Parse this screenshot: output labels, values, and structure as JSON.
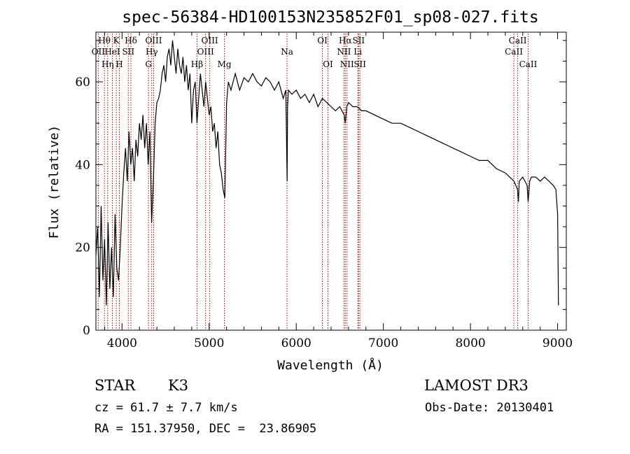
{
  "chart_data": {
    "type": "line",
    "title": "spec-56384-HD100153N235852F01_sp08-027.fits",
    "xlabel": "Wavelength (Å)",
    "ylabel": "Flux (relative)",
    "xlim": [
      3700,
      9100
    ],
    "ylim": [
      0,
      72
    ],
    "xticks": [
      4000,
      5000,
      6000,
      7000,
      8000,
      9000
    ],
    "xtick_labels": [
      "4000",
      "5000",
      "6000",
      "7000",
      "8000",
      "9000"
    ],
    "yticks": [
      0,
      20,
      40,
      60
    ],
    "ytick_labels": [
      "0",
      "20",
      "40",
      "60"
    ],
    "grid": false,
    "series": [
      {
        "color": "#000000",
        "x": [
          3700,
          3720,
          3740,
          3760,
          3780,
          3800,
          3820,
          3840,
          3860,
          3880,
          3900,
          3920,
          3940,
          3960,
          3980,
          4000,
          4020,
          4040,
          4060,
          4080,
          4100,
          4120,
          4140,
          4160,
          4180,
          4200,
          4220,
          4240,
          4260,
          4280,
          4300,
          4320,
          4340,
          4360,
          4380,
          4400,
          4420,
          4440,
          4460,
          4480,
          4500,
          4520,
          4540,
          4560,
          4580,
          4600,
          4620,
          4640,
          4660,
          4680,
          4700,
          4720,
          4740,
          4760,
          4780,
          4800,
          4820,
          4840,
          4860,
          4880,
          4900,
          4920,
          4940,
          4960,
          4980,
          5000,
          5020,
          5040,
          5060,
          5080,
          5100,
          5120,
          5140,
          5160,
          5180,
          5200,
          5220,
          5250,
          5300,
          5350,
          5400,
          5450,
          5500,
          5550,
          5600,
          5650,
          5700,
          5750,
          5800,
          5850,
          5880,
          5890,
          5895,
          5900,
          5910,
          5950,
          6000,
          6050,
          6100,
          6150,
          6200,
          6250,
          6300,
          6350,
          6400,
          6450,
          6500,
          6550,
          6563,
          6580,
          6600,
          6650,
          6700,
          6750,
          6800,
          6900,
          7000,
          7100,
          7200,
          7300,
          7400,
          7500,
          7600,
          7700,
          7800,
          7900,
          8000,
          8100,
          8200,
          8300,
          8400,
          8500,
          8540,
          8550,
          8560,
          8600,
          8650,
          8662,
          8680,
          8700,
          8750,
          8800,
          8850,
          8900,
          8950,
          8980,
          9000,
          9010
        ],
        "y": [
          18,
          25,
          8,
          30,
          12,
          22,
          6,
          26,
          10,
          20,
          8,
          28,
          15,
          12,
          20,
          30,
          38,
          44,
          36,
          48,
          40,
          44,
          36,
          46,
          42,
          50,
          46,
          52,
          44,
          50,
          40,
          48,
          26,
          36,
          50,
          55,
          56,
          58,
          62,
          64,
          60,
          66,
          68,
          64,
          70,
          66,
          62,
          68,
          64,
          62,
          66,
          60,
          64,
          58,
          62,
          50,
          58,
          60,
          50,
          56,
          62,
          58,
          54,
          60,
          56,
          52,
          54,
          48,
          50,
          44,
          48,
          40,
          38,
          34,
          32,
          55,
          60,
          58,
          62,
          58,
          61,
          60,
          62,
          60,
          59,
          61,
          60,
          58,
          60,
          56,
          58,
          44,
          36,
          54,
          58,
          57,
          58,
          56,
          57,
          55,
          57,
          54,
          56,
          55,
          54,
          53,
          54,
          52,
          50,
          54,
          55,
          54,
          54,
          53,
          53,
          52,
          51,
          50,
          50,
          49,
          48,
          47,
          46,
          45,
          44,
          43,
          42,
          41,
          41,
          39,
          38,
          36,
          34,
          31,
          36,
          37,
          35,
          31,
          36,
          37,
          37,
          36,
          37,
          36,
          35,
          34,
          28,
          6
        ],
        "values": [
          18,
          25,
          8,
          30,
          12,
          22,
          6,
          26,
          10,
          20,
          8,
          28,
          15,
          12,
          20,
          30,
          38,
          44,
          36,
          48,
          40,
          44,
          36,
          46,
          42,
          50,
          46,
          52,
          44,
          50,
          40,
          48,
          26,
          36,
          50,
          55,
          56,
          58,
          62,
          64,
          60,
          66,
          68,
          64,
          70,
          66,
          62,
          68,
          64,
          62,
          66,
          60,
          64,
          58,
          62,
          50,
          58,
          60,
          50,
          56,
          62,
          58,
          54,
          60,
          56,
          52,
          54,
          48,
          50,
          44,
          48,
          40,
          38,
          34,
          32,
          55,
          60,
          58,
          62,
          58,
          61,
          60,
          62,
          60,
          59,
          61,
          60,
          58,
          60,
          56,
          58,
          44,
          36,
          54,
          58,
          57,
          58,
          56,
          57,
          55,
          57,
          54,
          56,
          55,
          54,
          53,
          54,
          52,
          50,
          54,
          55,
          54,
          54,
          53,
          53,
          52,
          51,
          50,
          50,
          49,
          48,
          47,
          46,
          45,
          44,
          43,
          42,
          41,
          41,
          39,
          38,
          36,
          34,
          31,
          36,
          37,
          35,
          31,
          36,
          37,
          37,
          36,
          37,
          36,
          35,
          34,
          28,
          6
        ]
      }
    ],
    "line_color": "#aa0000",
    "lines": [
      {
        "x": 3727,
        "label": "OII",
        "row": 2
      },
      {
        "x": 3798,
        "label": "Hθ",
        "row": 1
      },
      {
        "x": 3835,
        "label": "Hη",
        "row": 3
      },
      {
        "x": 3889,
        "label": "HeI",
        "row": 2
      },
      {
        "x": 3934,
        "label": "K",
        "row": 1
      },
      {
        "x": 3969,
        "label": "H",
        "row": 3
      },
      {
        "x": 4072,
        "label": "SII",
        "row": 2
      },
      {
        "x": 4102,
        "label": "Hδ",
        "row": 1
      },
      {
        "x": 4304,
        "label": "G",
        "row": 3
      },
      {
        "x": 4341,
        "label": "Hγ",
        "row": 2
      },
      {
        "x": 4363,
        "label": "OIII",
        "row": 1
      },
      {
        "x": 4861,
        "label": "Hβ",
        "row": 3
      },
      {
        "x": 4959,
        "label": "OIII",
        "row": 2
      },
      {
        "x": 5007,
        "label": "OIII",
        "row": 1
      },
      {
        "x": 5175,
        "label": "Mg",
        "row": 3
      },
      {
        "x": 5894,
        "label": "Na",
        "row": 2
      },
      {
        "x": 6300,
        "label": "OI",
        "row": 1
      },
      {
        "x": 6364,
        "label": "OI",
        "row": 3
      },
      {
        "x": 6548,
        "label": "NII",
        "row": 2
      },
      {
        "x": 6563,
        "label": "Hα",
        "row": 1
      },
      {
        "x": 6583,
        "label": "NII",
        "row": 3
      },
      {
        "x": 6707,
        "label": "Li",
        "row": 2
      },
      {
        "x": 6716,
        "label": "SII",
        "row": 1
      },
      {
        "x": 6731,
        "label": "SII",
        "row": 3
      },
      {
        "x": 8498,
        "label": "CaII",
        "row": 2
      },
      {
        "x": 8542,
        "label": "CaII",
        "row": 1
      },
      {
        "x": 8662,
        "label": "CaII",
        "row": 3
      }
    ]
  },
  "footer": {
    "class_label": "STAR",
    "subclass": "K3",
    "survey": "LAMOST DR3",
    "cz": "cz = 61.7 ± 7.7 km/s",
    "obs_date": "Obs-Date: 20130401",
    "coords": "RA = 151.37950, DEC =  23.86905"
  }
}
